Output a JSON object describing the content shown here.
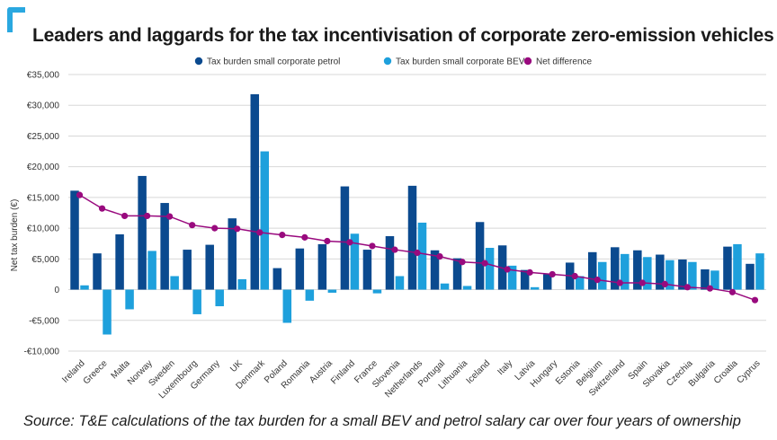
{
  "title": "Leaders and laggards for the tax incentivisation of corporate zero-emission vehicles",
  "source": "Source: T&E calculations of the tax burden for a small BEV and petrol salary car over four years of ownership",
  "colors": {
    "petrol": "#0b4a8f",
    "bev": "#1ea0dc",
    "net": "#990a7e",
    "logo": "#2aa8e0",
    "grid": "#d8d8d8"
  },
  "chart_data": {
    "type": "bar",
    "title": "Leaders and laggards for the tax incentivisation of corporate zero-emission vehicles",
    "ylabel": "Net tax burden (€)",
    "xlabel": "",
    "ylim": [
      -10000,
      35000
    ],
    "yticks": [
      35000,
      30000,
      25000,
      20000,
      15000,
      10000,
      5000,
      0,
      -5000,
      -10000
    ],
    "ytick_labels": [
      "€35,000",
      "€30,000",
      "€25,000",
      "€20,000",
      "€15,000",
      "€10,000",
      "€5,000",
      "0",
      "-€5,000",
      "-€10,000"
    ],
    "grid": true,
    "legend_position": "top",
    "categories": [
      "Ireland",
      "Greece",
      "Malta",
      "Norway",
      "Sweden",
      "Luxembourg",
      "Germany",
      "UK",
      "Denmark",
      "Poland",
      "Romania",
      "Austria",
      "Finland",
      "France",
      "Slovenia",
      "Netherlands",
      "Portugal",
      "Lithuania",
      "Iceland",
      "Italy",
      "Latvia",
      "Hungary",
      "Estonia",
      "Belgium",
      "Switzerland",
      "Spain",
      "Slovakia",
      "Czechia",
      "Bulgaria",
      "Croatia",
      "Cyprus"
    ],
    "series": [
      {
        "name": "Tax burden small corporate petrol",
        "kind": "bar",
        "values": [
          16100,
          5900,
          9000,
          18500,
          14100,
          6500,
          7300,
          11600,
          31800,
          3500,
          6700,
          7400,
          16800,
          6500,
          8700,
          16900,
          6400,
          5100,
          11000,
          7200,
          3200,
          2500,
          4400,
          6100,
          6900,
          6400,
          5700,
          4900,
          3300,
          7000,
          4200
        ]
      },
      {
        "name": "Tax burden small corporate BEV",
        "kind": "bar",
        "values": [
          700,
          -7300,
          -3200,
          6300,
          2200,
          -4000,
          -2700,
          1700,
          22500,
          -5400,
          -1800,
          -500,
          9100,
          -600,
          2200,
          10900,
          1000,
          600,
          6800,
          3900,
          400,
          0,
          2200,
          4500,
          5800,
          5300,
          4800,
          4500,
          3100,
          7400,
          5900
        ]
      },
      {
        "name": "Net difference",
        "kind": "line",
        "values": [
          15400,
          13200,
          12000,
          12000,
          11900,
          10500,
          10000,
          9900,
          9300,
          8900,
          8500,
          7900,
          7700,
          7100,
          6500,
          6000,
          5400,
          4500,
          4300,
          3300,
          2800,
          2500,
          2200,
          1600,
          1100,
          1100,
          900,
          400,
          200,
          -400,
          -1700
        ]
      }
    ]
  }
}
